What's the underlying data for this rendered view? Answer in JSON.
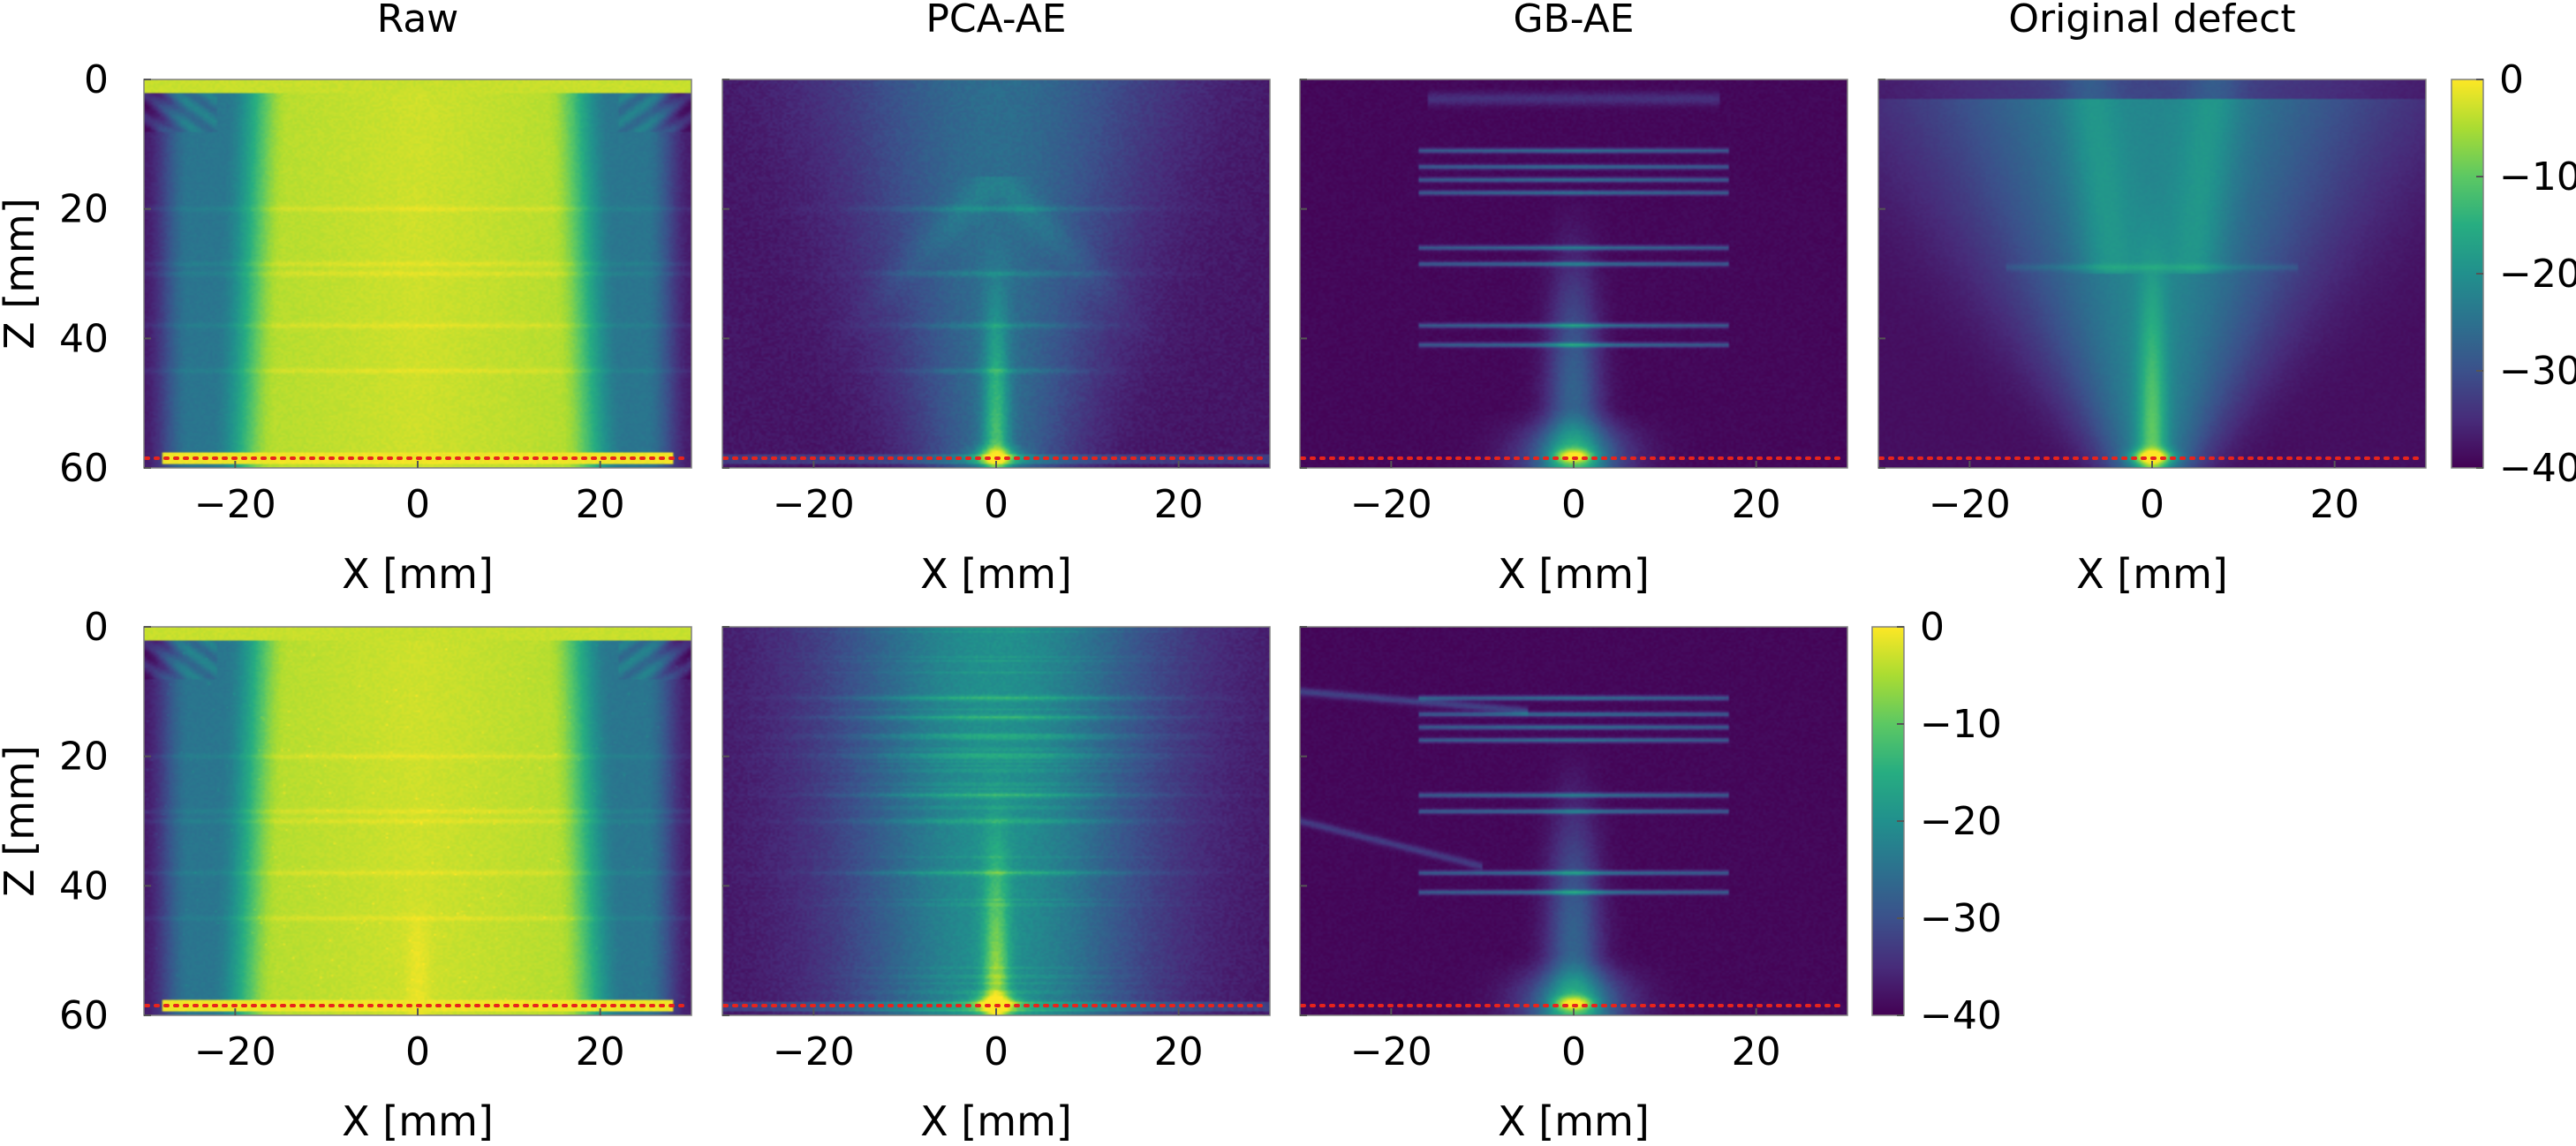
{
  "chart_data": {
    "type": "heatmap",
    "colormap": "viridis",
    "xlabel": "X [mm]",
    "ylabel": "Z [mm]",
    "xlim": [
      -30,
      30
    ],
    "ylim": [
      0,
      60
    ],
    "y_inverted": true,
    "xticks": [
      -20,
      0,
      20
    ],
    "xtick_labels": [
      "−20",
      "0",
      "20"
    ],
    "yticks": [
      0,
      20,
      40,
      60
    ],
    "ytick_labels": [
      "0",
      "20",
      "40",
      "60"
    ],
    "colorbar": {
      "range": [
        -40,
        0
      ],
      "ticks": [
        0,
        -10,
        -20,
        -30,
        -40
      ],
      "tick_labels": [
        "0",
        "−10",
        "−20",
        "−30",
        "−40"
      ]
    },
    "viridis_stops": [
      "#440154",
      "#472c7a",
      "#3b518b",
      "#2c718e",
      "#21908d",
      "#27ad81",
      "#5cc863",
      "#aadc32",
      "#fde725"
    ],
    "reference_line": {
      "z": 58.5,
      "style": "dotted",
      "color": "#e8241c"
    },
    "panels": [
      {
        "row": 0,
        "col": 0,
        "title": "Raw",
        "model": "raw",
        "variant": 1,
        "show_ylabel": true
      },
      {
        "row": 0,
        "col": 1,
        "title": "PCA-AE",
        "model": "pca",
        "variant": 1,
        "show_ylabel": false
      },
      {
        "row": 0,
        "col": 2,
        "title": "GB-AE",
        "model": "gb",
        "variant": 1,
        "show_ylabel": false
      },
      {
        "row": 0,
        "col": 3,
        "title": "Original defect",
        "model": "orig",
        "variant": 1,
        "show_ylabel": false
      },
      {
        "row": 1,
        "col": 0,
        "title": "",
        "model": "raw",
        "variant": 2,
        "show_ylabel": true
      },
      {
        "row": 1,
        "col": 1,
        "title": "",
        "model": "pca",
        "variant": 2,
        "show_ylabel": false
      },
      {
        "row": 1,
        "col": 2,
        "title": "",
        "model": "gb",
        "variant": 2,
        "show_ylabel": false
      }
    ],
    "reflector_depths": {
      "raw": [
        20,
        28.5,
        30,
        38,
        45
      ],
      "pca": [
        20,
        30,
        38,
        45
      ],
      "pca_row2": [
        11,
        14,
        17,
        20,
        26,
        30,
        38
      ],
      "gb": [
        11,
        13.5,
        15.5,
        17.5,
        26,
        28.5,
        38,
        41
      ],
      "orig": [
        29
      ]
    },
    "defect_position": {
      "x": 0,
      "z": 58
    }
  }
}
